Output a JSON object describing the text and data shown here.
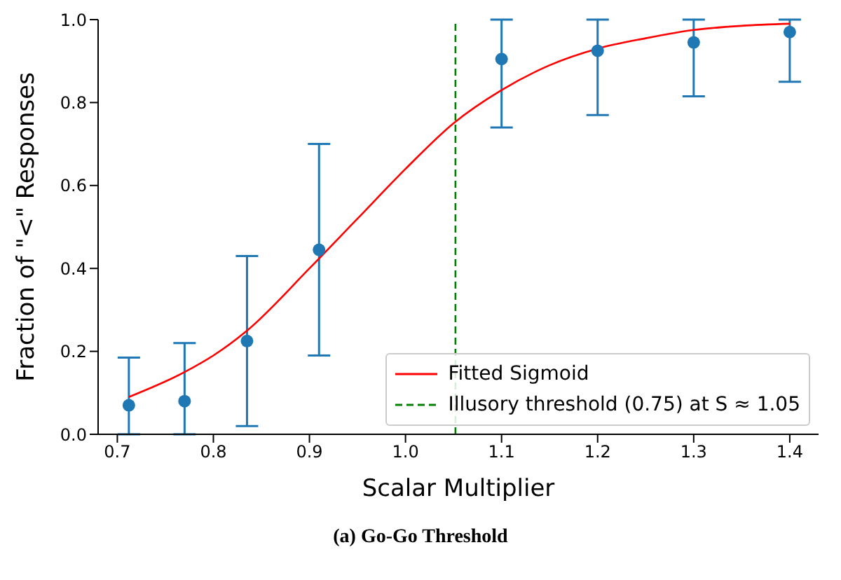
{
  "chart_data": {
    "type": "scatter",
    "xlabel": "Scalar Multiplier",
    "ylabel": "Fraction of \"<\" Responses",
    "annotations": [
      "(a) Go-Go Threshold"
    ],
    "xlim": [
      0.68,
      1.43
    ],
    "xticks": [
      0.7,
      0.8,
      0.9,
      {
        "value": 1,
        "label": "1.0"
      },
      1.1,
      1.2,
      1.3,
      1.4
    ],
    "ylim": [
      0,
      1
    ],
    "yticks": [
      {
        "value": 0,
        "label": "0.0"
      },
      0.2,
      0.4,
      0.6,
      0.8,
      {
        "value": 1,
        "label": "1.0"
      }
    ],
    "grid": false,
    "legend": "bottom right",
    "marker": "circle",
    "series": [
      {
        "color": "#1f77b4",
        "x": [
          0.712,
          0.77,
          0.835,
          0.91,
          1.1,
          1.2,
          1.3,
          1.4
        ],
        "values": [
          0.07,
          0.08,
          0.225,
          0.445,
          0.905,
          0.925,
          0.945,
          0.97
        ],
        "errors": [
          [
            0,
            0.185
          ],
          [
            0,
            0.22
          ],
          [
            0.02,
            0.43
          ],
          [
            0.19,
            0.7
          ],
          [
            0.74,
            1.0
          ],
          [
            0.77,
            1.0
          ],
          [
            0.815,
            1.0
          ],
          [
            0.85,
            1.0
          ]
        ]
      },
      {
        "type": "line",
        "name": "Fitted Sigmoid",
        "color": "#ff0000",
        "marker": "none",
        "line_style": "solid",
        "x": [
          0.712,
          0.77,
          0.8,
          0.835,
          0.9,
          0.95,
          1.0,
          1.05,
          1.1,
          1.15,
          1.2,
          1.25,
          1.3,
          1.35,
          1.4
        ],
        "values": [
          0.09,
          0.15,
          0.19,
          0.25,
          0.4,
          0.52,
          0.64,
          0.75,
          0.83,
          0.89,
          0.93,
          0.955,
          0.975,
          0.985,
          0.99
        ]
      }
    ],
    "ref_lines": [
      {
        "axis": "x",
        "value": 1.052,
        "label": "Illusory threshold (0.75) at S ≈ 1.05",
        "color": "#008000",
        "line_style": "dashed"
      }
    ]
  }
}
